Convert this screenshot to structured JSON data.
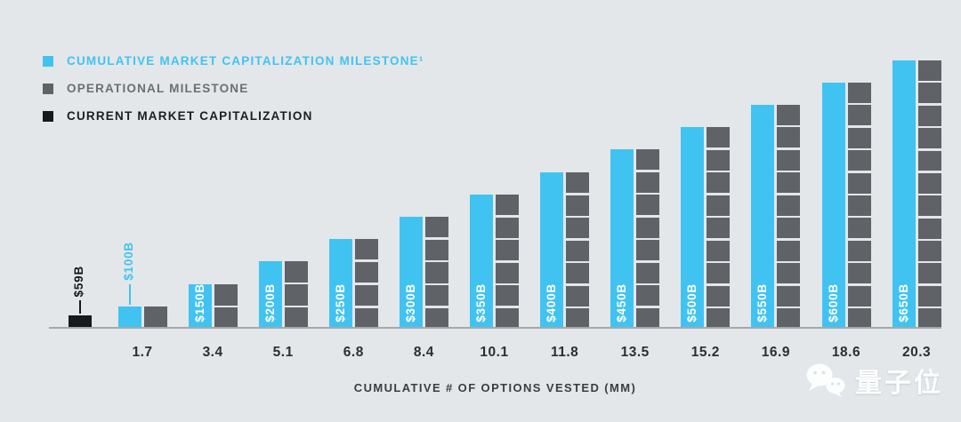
{
  "colors": {
    "background": "#e3e7ea",
    "market_cap_milestone": "#41c3f2",
    "operational_milestone": "#5f6367",
    "current_market_cap": "#17191d",
    "axis_line": "#a4a9ad",
    "tick_text": "#2b2f34",
    "bar_label_text": "#ffffff"
  },
  "legend": {
    "items": [
      {
        "id": "market-cap-milestone",
        "label": "CUMULATIVE MARKET CAPITALIZATION MILESTONE¹",
        "swatch_color": "#41c3f2",
        "text_color": "#41c3f2"
      },
      {
        "id": "operational-milestone",
        "label": "OPERATIONAL MILESTONE",
        "swatch_color": "#5f6367",
        "text_color": "#6b6f74"
      },
      {
        "id": "current-market-cap",
        "label": "CURRENT MARKET CAPITALIZATION",
        "swatch_color": "#17191d",
        "text_color": "#1b1e22"
      }
    ]
  },
  "chart_data": {
    "type": "bar",
    "title": "",
    "xlabel": "CUMULATIVE # OF OPTIONS VESTED (MM)",
    "ylabel": "",
    "grid": false,
    "legend_position": "top-left",
    "categories": [
      "1.7",
      "3.4",
      "5.1",
      "6.8",
      "8.4",
      "10.1",
      "11.8",
      "13.5",
      "15.2",
      "16.9",
      "18.6",
      "20.3"
    ],
    "series": [
      {
        "name": "CUMULATIVE MARKET CAPITALIZATION MILESTONE¹",
        "labels": [
          "$100B",
          "$150B",
          "$200B",
          "$250B",
          "$300B",
          "$350B",
          "$400B",
          "$450B",
          "$500B",
          "$550B",
          "$600B",
          "$650B"
        ],
        "values_billions": [
          100,
          150,
          200,
          250,
          300,
          350,
          400,
          450,
          500,
          550,
          600,
          650
        ]
      },
      {
        "name": "OPERATIONAL MILESTONE",
        "segment_counts": [
          1,
          2,
          3,
          4,
          5,
          6,
          7,
          8,
          9,
          10,
          11,
          12
        ]
      },
      {
        "name": "CURRENT MARKET CAPITALIZATION",
        "label": "$59B",
        "value_billions": 59
      }
    ]
  },
  "watermark": {
    "icon": "wechat-icon",
    "text": "量子位"
  }
}
